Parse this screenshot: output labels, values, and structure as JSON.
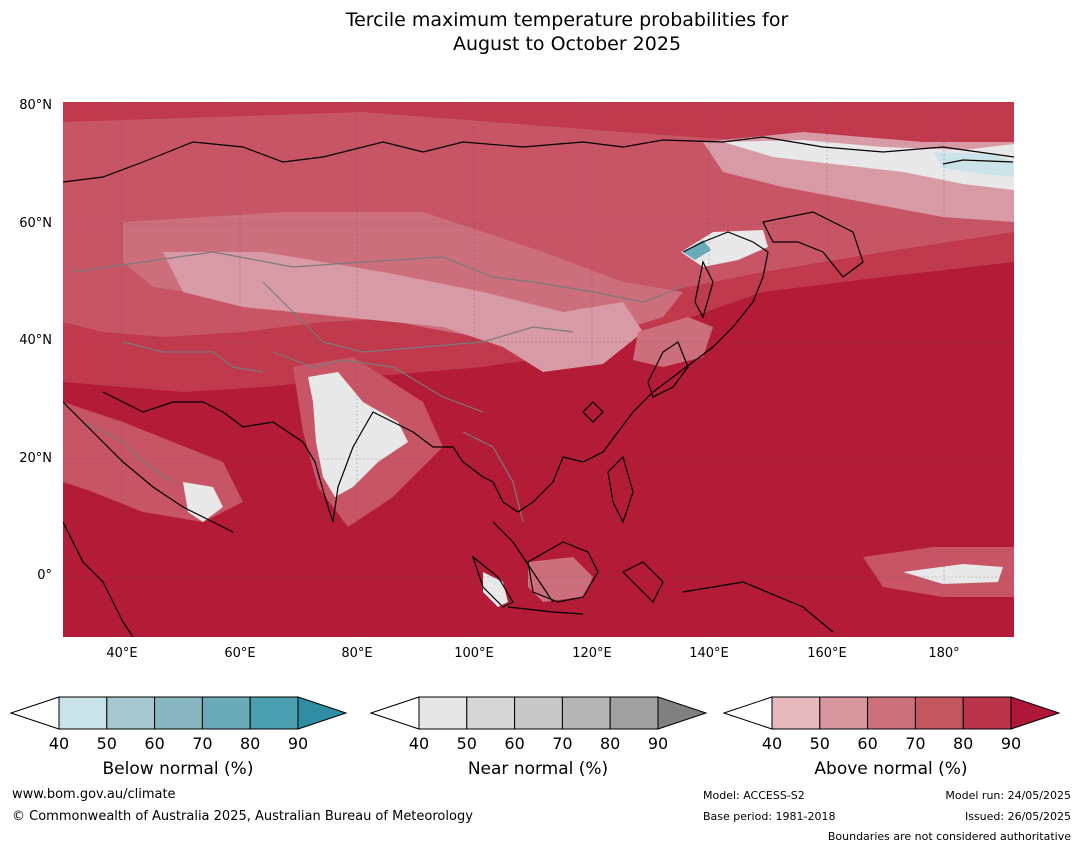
{
  "title": {
    "line1": "Tercile maximum temperature probabilities for",
    "line2": "August to October 2025"
  },
  "map": {
    "lat_labels": [
      "80°N",
      "60°N",
      "40°N",
      "20°N",
      "0°"
    ],
    "lon_labels": [
      "40°E",
      "60°E",
      "80°E",
      "100°E",
      "120°E",
      "140°E",
      "160°E",
      "180°"
    ],
    "colors": {
      "above_90": "#b31b37",
      "above_80": "#c1394d",
      "above_70": "#c75565",
      "above_60": "#cc6e7c",
      "above_50": "#d89aa4",
      "above_40": "#e6b8be",
      "near_40": "#e8e8e8",
      "below_40": "#cbe2e8",
      "below_70": "#6aabba",
      "coast": "#000000",
      "border": "#7a7a7a"
    }
  },
  "colorbars": [
    {
      "name": "below",
      "title": "Below normal (%)",
      "ticks": [
        "40",
        "50",
        "60",
        "70",
        "80",
        "90"
      ],
      "colors": [
        "#c8e2e8",
        "#a5c7ce",
        "#88b6c1",
        "#6aabba",
        "#4c9fb0",
        "#2f8ea3"
      ]
    },
    {
      "name": "near",
      "title": "Near normal (%)",
      "ticks": [
        "40",
        "50",
        "60",
        "70",
        "80",
        "90"
      ],
      "colors": [
        "#e6e6e6",
        "#d7d7d7",
        "#c8c8c8",
        "#b5b5b5",
        "#a0a0a0",
        "#808080"
      ]
    },
    {
      "name": "above",
      "title": "Above normal (%)",
      "ticks": [
        "40",
        "50",
        "60",
        "70",
        "80",
        "90"
      ],
      "colors": [
        "#e5b9be",
        "#d8969f",
        "#cd727d",
        "#c3565f",
        "#b9344a",
        "#b0163a"
      ]
    }
  ],
  "footer": {
    "website": "www.bom.gov.au/climate",
    "copyright": "© Commonwealth of Australia 2025, Australian Bureau of Meteorology",
    "model": "Model: ACCESS-S2",
    "base_period": "Base period: 1981-2018",
    "model_run": "Model run: 24/05/2025",
    "issued": "Issued: 26/05/2025",
    "disclaimer": "Boundaries are not considered authoritative"
  }
}
